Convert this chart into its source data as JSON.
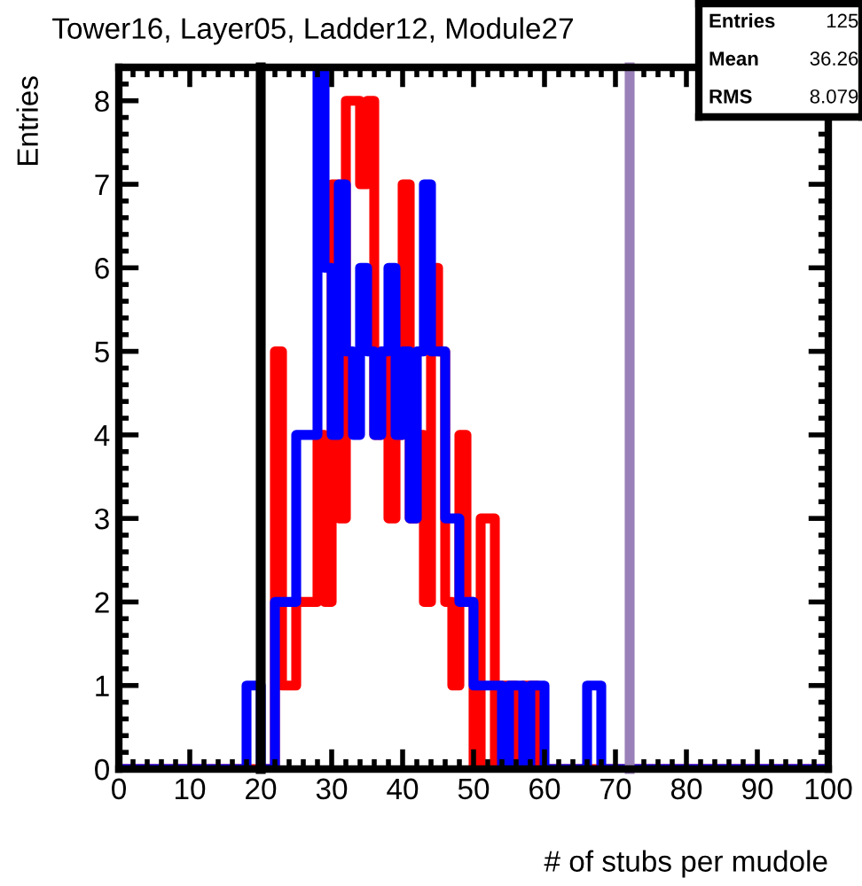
{
  "chart_data": {
    "type": "histogram",
    "title": "Tower16, Layer05, Ladder12, Module27",
    "xlabel": "# of stubs per mudole",
    "ylabel": "Entries",
    "bins": [
      0,
      1,
      2,
      3,
      4,
      5,
      6,
      7,
      8,
      9,
      10,
      11,
      12,
      13,
      14,
      15,
      16,
      17,
      18,
      19,
      20,
      21,
      22,
      23,
      24,
      25,
      26,
      27,
      28,
      29,
      30,
      31,
      32,
      33,
      34,
      35,
      36,
      37,
      38,
      39,
      40,
      41,
      42,
      43,
      44,
      45,
      46,
      47,
      48,
      49,
      50,
      51,
      52,
      53,
      54,
      55,
      56,
      57,
      58,
      59,
      60,
      61,
      62,
      63,
      64,
      65,
      66,
      67,
      68,
      69,
      70,
      71,
      72,
      73,
      74,
      75,
      76,
      77,
      78,
      79,
      80,
      81,
      82,
      83,
      84,
      85,
      86,
      87,
      88,
      89,
      90,
      91,
      92,
      93,
      94,
      95,
      96,
      97,
      98,
      99,
      100
    ],
    "series": [
      {
        "color": "#ff0000",
        "values": [
          0,
          0,
          0,
          0,
          0,
          0,
          0,
          0,
          0,
          0,
          0,
          0,
          0,
          0,
          0,
          0,
          0,
          0,
          0,
          0,
          0,
          0,
          5,
          1,
          1,
          2,
          2,
          2,
          4,
          2,
          7,
          3,
          8,
          8,
          7,
          8,
          4,
          5,
          3,
          4,
          7,
          3,
          4,
          2,
          6,
          5,
          2,
          1,
          4,
          2,
          0,
          3,
          3,
          0,
          1,
          1,
          0,
          1,
          1,
          0,
          0,
          0,
          0,
          0,
          0,
          0,
          0,
          0,
          0,
          0,
          0,
          0,
          0,
          0,
          0,
          0,
          0,
          0,
          0,
          0,
          0,
          0,
          0,
          0,
          0,
          0,
          0,
          0,
          0,
          0,
          0,
          0,
          0,
          0,
          0,
          0,
          0,
          0,
          0,
          0
        ]
      },
      {
        "color": "#0000ff",
        "values": [
          0,
          0,
          0,
          0,
          0,
          0,
          0,
          0,
          0,
          0,
          0,
          0,
          0,
          0,
          0,
          0,
          0,
          0,
          1,
          1,
          0,
          0,
          2,
          2,
          2,
          4,
          4,
          4,
          8.4,
          6,
          4,
          7,
          5,
          4,
          6,
          5,
          4,
          5,
          6,
          4,
          5,
          3,
          5,
          7,
          5,
          5,
          3,
          3,
          2,
          2,
          1,
          1,
          1,
          1,
          0,
          1,
          1,
          0,
          1,
          1,
          0,
          0,
          0,
          0,
          0,
          0,
          1,
          1,
          0,
          0,
          0,
          0,
          0,
          0,
          0,
          0,
          0,
          0,
          0,
          0,
          0,
          0,
          0,
          0,
          0,
          0,
          0,
          0,
          0,
          0,
          0,
          0,
          0,
          0,
          0,
          0,
          0,
          0,
          0,
          0
        ]
      }
    ],
    "xlim": [
      0,
      100
    ],
    "ylim": [
      0,
      8.4
    ],
    "xticks": [
      0,
      10,
      20,
      30,
      40,
      50,
      60,
      70,
      80,
      90,
      100
    ],
    "yticks": [
      0,
      1,
      2,
      3,
      4,
      5,
      6,
      7,
      8
    ],
    "ref_lines": [
      {
        "axis": "x",
        "value": 20,
        "color": "#000000"
      },
      {
        "axis": "x",
        "value": 72,
        "color": "#9a80b8"
      }
    ],
    "annotations": [
      "Entries",
      "125",
      "Mean",
      "36.26",
      "RMS",
      "8.079"
    ],
    "grid": false,
    "legend": false
  }
}
